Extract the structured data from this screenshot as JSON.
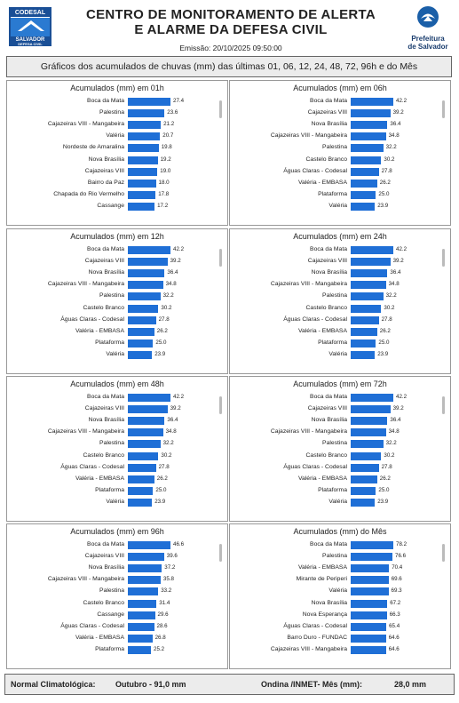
{
  "header": {
    "title_line1": "CENTRO DE MONITORAMENTO DE ALERTA",
    "title_line2": "E ALARME DA DEFESA CIVIL",
    "emission": "Emissão: 20/10/2025 09:50:00",
    "logo_left": {
      "top": "CODESAL",
      "middle": "SALVADOR",
      "bottom": "DEFESA CIVIL"
    },
    "logo_right": {
      "line1": "Prefeitura",
      "line2": "de Salvador"
    }
  },
  "subheader": "Gráficos dos acumulados de chuvas (mm) das últimas 01, 06, 12, 24, 48, 72, 96h e do Mês",
  "colors": {
    "bar": "#1f6fd6",
    "panel_border": "#999999",
    "header_bg": "#ececec"
  },
  "chart_data": [
    {
      "type": "bar",
      "title": "Acumulados (mm) em 01h",
      "categories": [
        "Boca da Mata",
        "Palestina",
        "Cajazeiras VIII - Mangabeira",
        "Valéria",
        "Nordeste de Amaralina",
        "Nova Brasília",
        "Cajazeiras VIII",
        "Bairro da Paz",
        "Chapada do Rio Vermelho",
        "Cassange"
      ],
      "values": [
        27.4,
        23.6,
        21.2,
        20.7,
        19.8,
        19.2,
        19.0,
        18.0,
        17.8,
        17.2
      ],
      "value_labels": [
        "27.4",
        "23.6",
        "21.2",
        "20.7",
        "19.8",
        "19.2",
        "19.0",
        "18.0",
        "17.8",
        "17.2"
      ]
    },
    {
      "type": "bar",
      "title": "Acumulados (mm) em 06h",
      "categories": [
        "Boca da Mata",
        "Cajazeiras VIII",
        "Nova Brasília",
        "Cajazeiras VIII - Mangabeira",
        "Palestina",
        "Castelo Branco",
        "Águas Claras - Codesal",
        "Valéria - EMBASA",
        "Plataforma",
        "Valéria"
      ],
      "values": [
        42.2,
        39.2,
        36.4,
        34.8,
        32.2,
        30.2,
        27.8,
        26.2,
        25.0,
        23.9
      ],
      "value_labels": [
        "42.2",
        "39.2",
        "36.4",
        "34.8",
        "32.2",
        "30.2",
        "27.8",
        "26.2",
        "25.0",
        "23.9"
      ]
    },
    {
      "type": "bar",
      "title": "Acumulados (mm) em 12h",
      "categories": [
        "Boca da Mata",
        "Cajazeiras VIII",
        "Nova Brasília",
        "Cajazeiras VIII - Mangabeira",
        "Palestina",
        "Castelo Branco",
        "Águas Claras - Codesal",
        "Valéria - EMBASA",
        "Plataforma",
        "Valéria"
      ],
      "values": [
        42.2,
        39.2,
        36.4,
        34.8,
        32.2,
        30.2,
        27.8,
        26.2,
        25.0,
        23.9
      ],
      "value_labels": [
        "42.2",
        "39.2",
        "36.4",
        "34.8",
        "32.2",
        "30.2",
        "27.8",
        "26.2",
        "25.0",
        "23.9"
      ]
    },
    {
      "type": "bar",
      "title": "Acumulados (mm) em 24h",
      "categories": [
        "Boca da Mata",
        "Cajazeiras VIII",
        "Nova Brasília",
        "Cajazeiras VIII - Mangabeira",
        "Palestina",
        "Castelo Branco",
        "Águas Claras - Codesal",
        "Valéria - EMBASA",
        "Plataforma",
        "Valéria"
      ],
      "values": [
        42.2,
        39.2,
        36.4,
        34.8,
        32.2,
        30.2,
        27.8,
        26.2,
        25.0,
        23.9
      ],
      "value_labels": [
        "42.2",
        "39.2",
        "36.4",
        "34.8",
        "32.2",
        "30.2",
        "27.8",
        "26.2",
        "25.0",
        "23.9"
      ]
    },
    {
      "type": "bar",
      "title": "Acumulados (mm) em 48h",
      "categories": [
        "Boca da Mata",
        "Cajazeiras VIII",
        "Nova Brasília",
        "Cajazeiras VIII - Mangabeira",
        "Palestina",
        "Castelo Branco",
        "Águas Claras - Codesal",
        "Valéria - EMBASA",
        "Plataforma",
        "Valéria"
      ],
      "values": [
        42.2,
        39.2,
        36.4,
        34.8,
        32.2,
        30.2,
        27.8,
        26.2,
        25.0,
        23.9
      ],
      "value_labels": [
        "42.2",
        "39.2",
        "36.4",
        "34.8",
        "32.2",
        "30.2",
        "27.8",
        "26.2",
        "25.0",
        "23.9"
      ]
    },
    {
      "type": "bar",
      "title": "Acumulados (mm) em 72h",
      "categories": [
        "Boca da Mata",
        "Cajazeiras VIII",
        "Nova Brasília",
        "Cajazeiras VIII - Mangabeira",
        "Palestina",
        "Castelo Branco",
        "Águas Claras - Codesal",
        "Valéria - EMBASA",
        "Plataforma",
        "Valéria"
      ],
      "values": [
        42.2,
        39.2,
        36.4,
        34.8,
        32.2,
        30.2,
        27.8,
        26.2,
        25.0,
        23.9
      ],
      "value_labels": [
        "42.2",
        "39.2",
        "36.4",
        "34.8",
        "32.2",
        "30.2",
        "27.8",
        "26.2",
        "25.0",
        "23.9"
      ]
    },
    {
      "type": "bar",
      "title": "Acumulados (mm) em 96h",
      "categories": [
        "Boca da Mata",
        "Cajazeiras VIII",
        "Nova Brasília",
        "Cajazeiras VIII - Mangabeira",
        "Palestina",
        "Castelo Branco",
        "Cassange",
        "Águas Claras - Codesal",
        "Valéria - EMBASA",
        "Plataforma"
      ],
      "values": [
        46.6,
        39.6,
        37.2,
        35.8,
        33.2,
        31.4,
        29.6,
        28.6,
        26.8,
        25.2
      ],
      "value_labels": [
        "46.6",
        "39.6",
        "37.2",
        "35.8",
        "33.2",
        "31.4",
        "29.6",
        "28.6",
        "26.8",
        "25.2"
      ]
    },
    {
      "type": "bar",
      "title": "Acumulados (mm) do Mês",
      "categories": [
        "Boca da Mata",
        "Palestina",
        "Valéria - EMBASA",
        "Mirante de Periperi",
        "Valéria",
        "Nova Brasília",
        "Nova Esperança",
        "Águas Claras - Codesal",
        "Barro Duro - FUNDAC",
        "Cajazeiras VIII - Mangabeira"
      ],
      "values": [
        78.2,
        76.6,
        70.4,
        69.6,
        69.3,
        67.2,
        66.3,
        65.4,
        64.6,
        64.6
      ],
      "value_labels": [
        "78.2",
        "76.6",
        "70.4",
        "69.6",
        "69.3",
        "67.2",
        "66.3",
        "65.4",
        "64.6",
        "64.6"
      ]
    }
  ],
  "footer": {
    "normal_label": "Normal Climatológica:",
    "normal_value": "Outubro - 91,0 mm",
    "ondina_label": "Ondina /INMET- Mês (mm):",
    "ondina_value": "28,0  mm"
  }
}
